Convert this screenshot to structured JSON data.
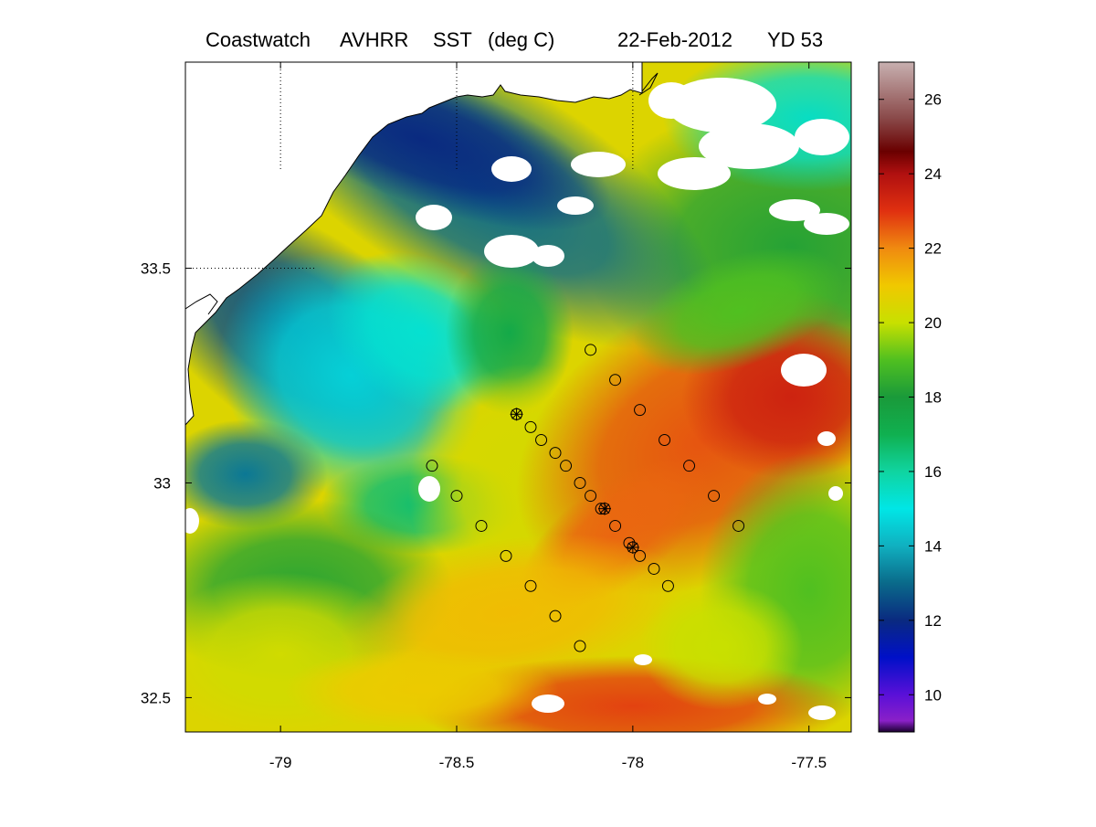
{
  "title": {
    "product": "Coastwatch",
    "sensor": "AVHRR",
    "variable": "SST",
    "units": "(deg C)",
    "date": "22-Feb-2012",
    "yearday": "YD 53"
  },
  "chart_data": {
    "type": "heatmap",
    "map_extent": {
      "lon": [
        -79.27,
        -77.38
      ],
      "lat": [
        32.42,
        33.98
      ]
    },
    "x_ticks": [
      {
        "value": -79,
        "label": "-79"
      },
      {
        "value": -78.5,
        "label": "-78.5"
      },
      {
        "value": -78,
        "label": "-78"
      },
      {
        "value": -77.5,
        "label": "-77.5"
      }
    ],
    "y_ticks": [
      {
        "value": 33.5,
        "label": "33.5"
      },
      {
        "value": 33,
        "label": "33"
      },
      {
        "value": 32.5,
        "label": "32.5"
      }
    ],
    "gridlines": "dotted at -79, -78.5, -78 longitude and 33.5 latitude",
    "colorbar": {
      "range": [
        9,
        27
      ],
      "ticks": [
        {
          "value": 10,
          "label": "10"
        },
        {
          "value": 12,
          "label": "12"
        },
        {
          "value": 14,
          "label": "14"
        },
        {
          "value": 16,
          "label": "16"
        },
        {
          "value": 18,
          "label": "18"
        },
        {
          "value": 20,
          "label": "20"
        },
        {
          "value": 22,
          "label": "22"
        },
        {
          "value": 24,
          "label": "24"
        },
        {
          "value": 26,
          "label": "26"
        }
      ],
      "stops": [
        [
          9,
          "#1a0030"
        ],
        [
          9.3,
          "#8a20c8"
        ],
        [
          10,
          "#5a10d8"
        ],
        [
          11,
          "#0010c8"
        ],
        [
          12,
          "#0a2a80"
        ],
        [
          13,
          "#0a6a8a"
        ],
        [
          14,
          "#10b0c0"
        ],
        [
          15,
          "#00e6e6"
        ],
        [
          16,
          "#10d4a0"
        ],
        [
          17,
          "#10b050"
        ],
        [
          18,
          "#1a9a3a"
        ],
        [
          19,
          "#50c020"
        ],
        [
          20,
          "#c8e000"
        ],
        [
          21,
          "#f0c800"
        ],
        [
          22,
          "#f08a10"
        ],
        [
          23,
          "#e03010"
        ],
        [
          24,
          "#b01010"
        ],
        [
          24.6,
          "#6a0000"
        ],
        [
          25.5,
          "#8a4a4a"
        ],
        [
          27,
          "#c8b0b0"
        ]
      ]
    },
    "stations": {
      "transect_a": [
        [
          -78.33,
          33.16
        ],
        [
          -78.29,
          33.13
        ],
        [
          -78.26,
          33.1
        ],
        [
          -78.22,
          33.07
        ],
        [
          -78.19,
          33.04
        ],
        [
          -78.15,
          33.0
        ],
        [
          -78.12,
          32.97
        ],
        [
          -78.09,
          32.94
        ],
        [
          -78.05,
          32.9
        ],
        [
          -78.01,
          32.86
        ],
        [
          -77.98,
          32.83
        ],
        [
          -77.94,
          32.8
        ],
        [
          -77.9,
          32.76
        ]
      ],
      "transect_b": [
        [
          -78.12,
          33.31
        ],
        [
          -78.05,
          33.24
        ],
        [
          -77.98,
          33.17
        ],
        [
          -77.91,
          33.1
        ],
        [
          -77.84,
          33.04
        ],
        [
          -77.77,
          32.97
        ],
        [
          -77.7,
          32.9
        ]
      ],
      "transect_c": [
        [
          -78.57,
          33.04
        ],
        [
          -78.5,
          32.97
        ],
        [
          -78.43,
          32.9
        ],
        [
          -78.36,
          32.83
        ],
        [
          -78.29,
          32.76
        ],
        [
          -78.22,
          32.69
        ],
        [
          -78.15,
          32.62
        ]
      ],
      "star_markers": [
        [
          -78.33,
          33.16
        ],
        [
          -78.08,
          32.94
        ],
        [
          -78.0,
          32.85
        ]
      ]
    }
  }
}
